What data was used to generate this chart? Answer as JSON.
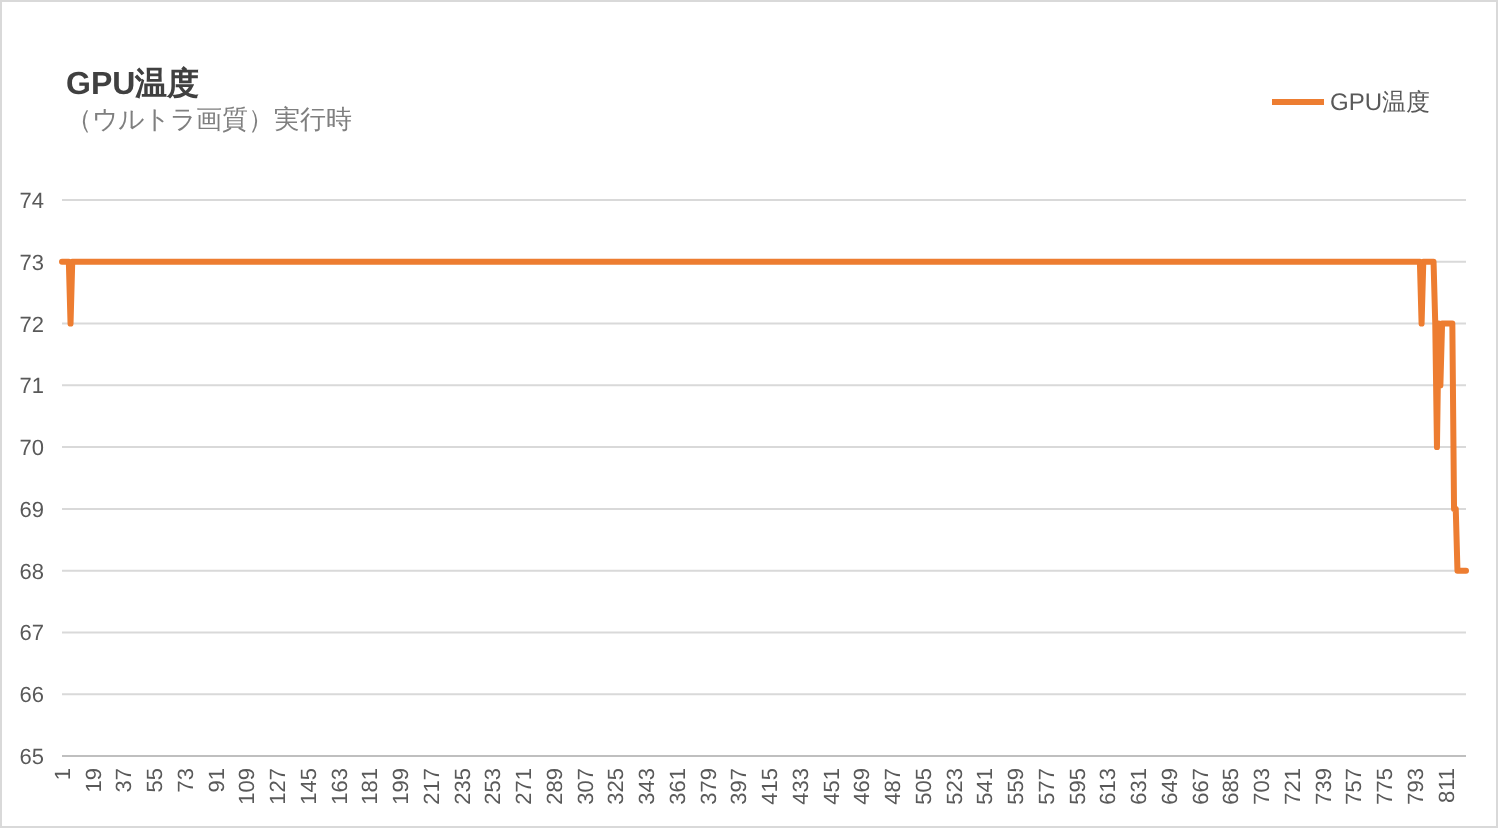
{
  "chart_data": {
    "type": "line",
    "title": "GPU温度",
    "subtitle": "（ウルトラ画質）実行時",
    "x": [
      1,
      5,
      6,
      7,
      796,
      797,
      798,
      804,
      805,
      806,
      807,
      808,
      809,
      815,
      816,
      817,
      818,
      823
    ],
    "series": [
      {
        "name": "GPU温度",
        "color": "#ed7d31",
        "values": [
          73,
          73,
          72,
          73,
          73,
          72,
          73,
          73,
          72,
          70,
          72,
          71,
          72,
          72,
          69,
          69,
          68,
          68
        ]
      }
    ],
    "xlim": [
      1,
      823
    ],
    "xticks": [
      1,
      19,
      37,
      55,
      73,
      91,
      109,
      127,
      145,
      163,
      181,
      199,
      217,
      235,
      253,
      271,
      289,
      307,
      325,
      343,
      361,
      379,
      397,
      415,
      433,
      451,
      469,
      487,
      505,
      523,
      541,
      559,
      577,
      595,
      613,
      631,
      649,
      667,
      685,
      703,
      721,
      739,
      757,
      775,
      793,
      811
    ],
    "ylim": [
      65,
      74
    ],
    "yticks": [
      65,
      66,
      67,
      68,
      69,
      70,
      71,
      72,
      73,
      74
    ],
    "grid": "y",
    "legend": "top right"
  }
}
